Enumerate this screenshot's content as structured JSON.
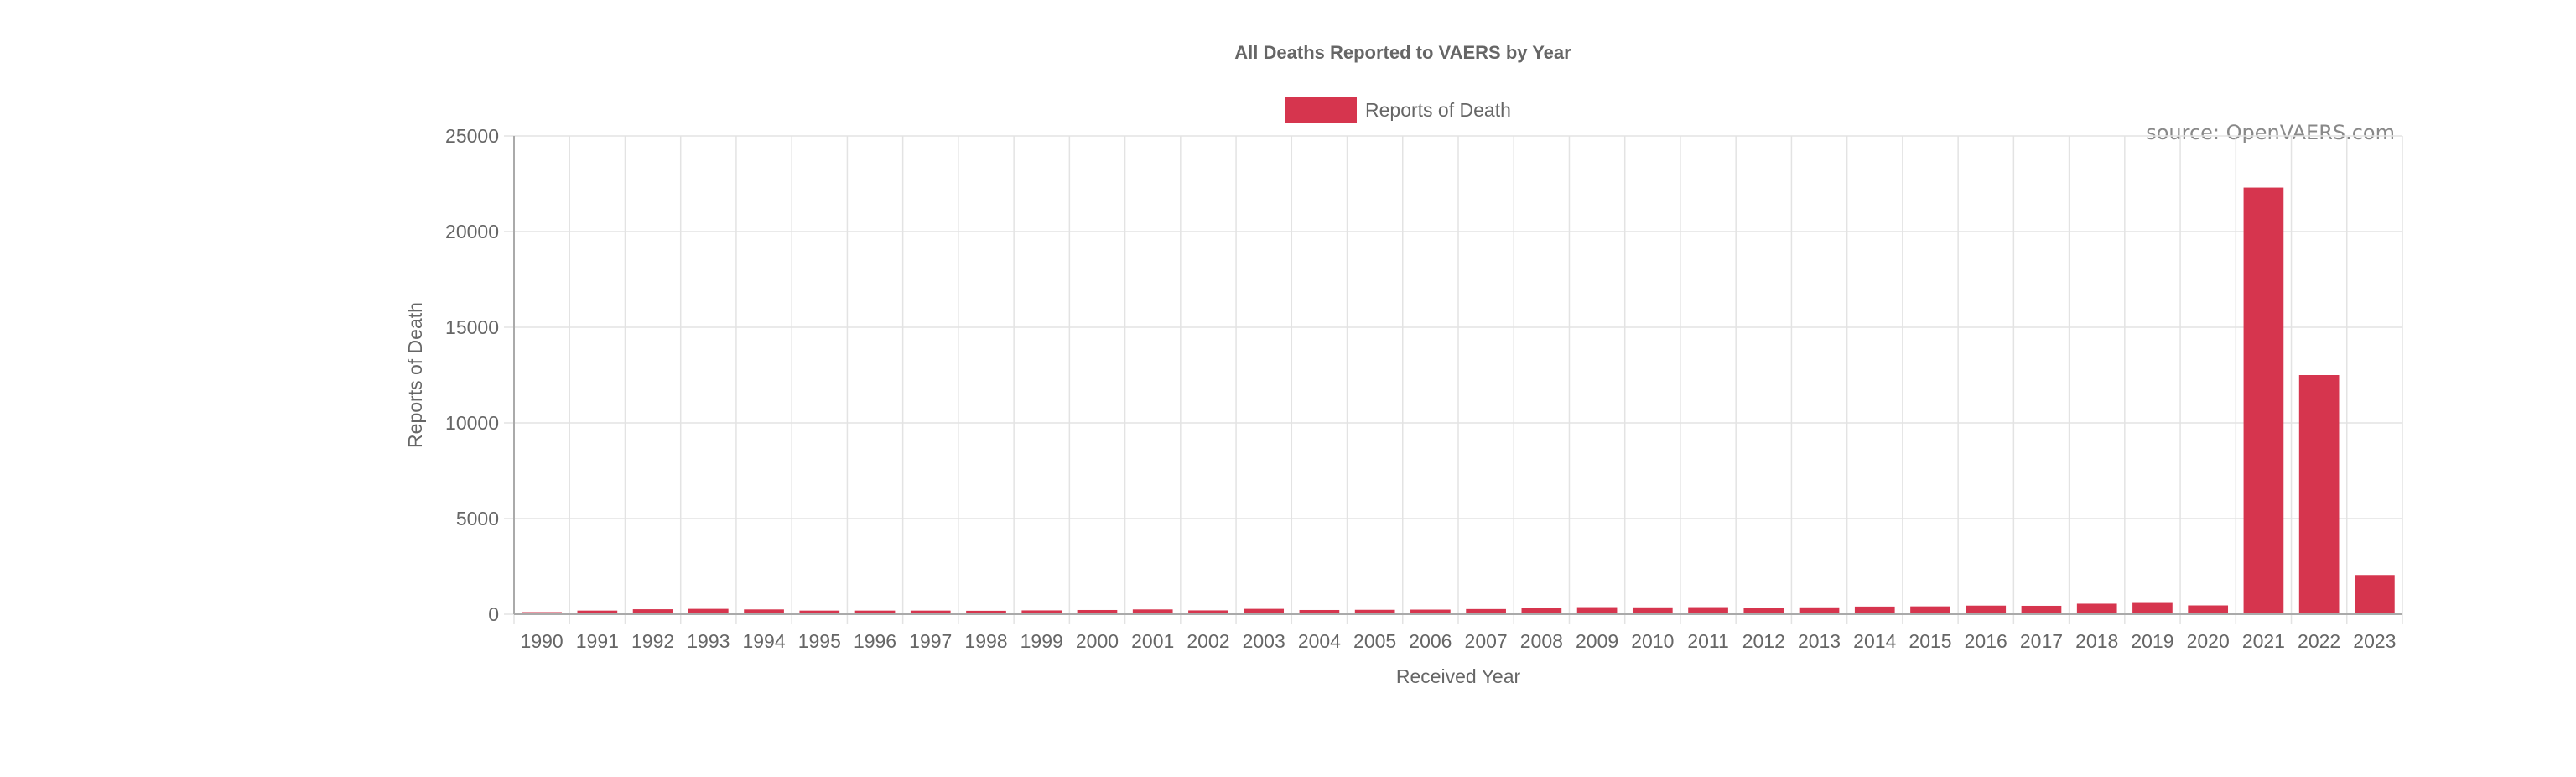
{
  "chart_data": {
    "type": "bar",
    "title": "All Deaths Reported to VAERS by Year",
    "legend": {
      "position": "top",
      "entries": [
        "Reports of Death"
      ]
    },
    "source_note": "source: OpenVAERS.com",
    "xlabel": "Received Year",
    "ylabel": "Reports of Death",
    "ylim": [
      0,
      25000
    ],
    "yticks": [
      "0",
      "5000",
      "10000",
      "15000",
      "20000",
      "25000"
    ],
    "grid": true,
    "color": "#d6354e",
    "categories": [
      "1990",
      "1991",
      "1992",
      "1993",
      "1994",
      "1995",
      "1996",
      "1997",
      "1998",
      "1999",
      "2000",
      "2001",
      "2002",
      "2003",
      "2004",
      "2005",
      "2006",
      "2007",
      "2008",
      "2009",
      "2010",
      "2011",
      "2012",
      "2013",
      "2014",
      "2015",
      "2016",
      "2017",
      "2018",
      "2019",
      "2020",
      "2021",
      "2022",
      "2023"
    ],
    "series": [
      {
        "name": "Reports of Death",
        "values": [
          110,
          190,
          260,
          280,
          250,
          190,
          190,
          190,
          180,
          200,
          220,
          250,
          200,
          280,
          220,
          230,
          240,
          270,
          340,
          370,
          360,
          370,
          350,
          360,
          400,
          410,
          450,
          440,
          550,
          590,
          460,
          22300,
          12500,
          2050
        ]
      }
    ]
  }
}
